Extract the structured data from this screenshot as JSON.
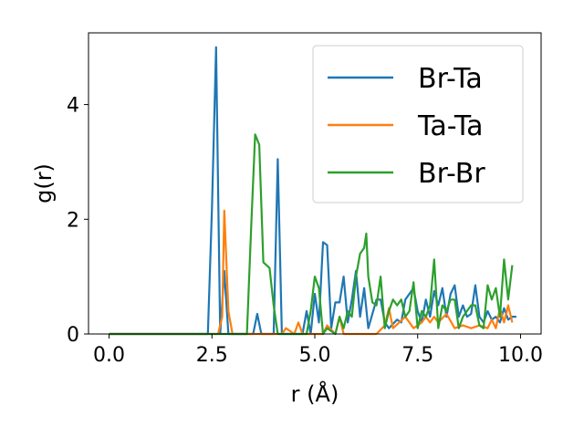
{
  "chart_data": {
    "type": "line",
    "title": "",
    "xlabel": "r (Å)",
    "ylabel": "g(r)",
    "xlim": [
      -0.5,
      10.5
    ],
    "ylim": [
      0,
      5.25
    ],
    "xticks": [
      0.0,
      2.5,
      5.0,
      7.5,
      10.0
    ],
    "xtick_labels": [
      "0.0",
      "2.5",
      "5.0",
      "7.5",
      "10.0"
    ],
    "yticks": [
      0,
      2,
      4
    ],
    "ytick_labels": [
      "0",
      "2",
      "4"
    ],
    "grid": false,
    "legend_position": "top-right",
    "series": [
      {
        "name": "Br-Ta",
        "color": "#1f77b4",
        "points": [
          [
            0.0,
            0
          ],
          [
            2.4,
            0
          ],
          [
            2.5,
            2.2
          ],
          [
            2.6,
            5.0
          ],
          [
            2.7,
            0
          ],
          [
            2.8,
            1.1
          ],
          [
            2.9,
            0
          ],
          [
            3.5,
            0
          ],
          [
            3.6,
            0.35
          ],
          [
            3.7,
            0
          ],
          [
            4.0,
            0
          ],
          [
            4.1,
            3.05
          ],
          [
            4.2,
            0
          ],
          [
            4.7,
            0
          ],
          [
            4.8,
            0.4
          ],
          [
            4.9,
            0
          ],
          [
            5.0,
            0.7
          ],
          [
            5.1,
            0.2
          ],
          [
            5.2,
            1.6
          ],
          [
            5.3,
            1.55
          ],
          [
            5.4,
            0.1
          ],
          [
            5.5,
            0.55
          ],
          [
            5.6,
            0.55
          ],
          [
            5.7,
            1.0
          ],
          [
            5.8,
            0.2
          ],
          [
            5.9,
            0.6
          ],
          [
            6.0,
            1.1
          ],
          [
            6.1,
            0.3
          ],
          [
            6.2,
            0.8
          ],
          [
            6.3,
            0.1
          ],
          [
            6.5,
            0.6
          ],
          [
            6.6,
            0.6
          ],
          [
            6.7,
            0.2
          ],
          [
            6.8,
            0.1
          ],
          [
            7.0,
            0.25
          ],
          [
            7.1,
            0.2
          ],
          [
            7.2,
            0.6
          ],
          [
            7.3,
            0.7
          ],
          [
            7.4,
            0.8
          ],
          [
            7.5,
            0.4
          ],
          [
            7.6,
            0.2
          ],
          [
            7.7,
            0.6
          ],
          [
            7.8,
            0.3
          ],
          [
            7.9,
            0.75
          ],
          [
            8.0,
            0.5
          ],
          [
            8.1,
            0.8
          ],
          [
            8.2,
            0.3
          ],
          [
            8.3,
            0.7
          ],
          [
            8.4,
            0.85
          ],
          [
            8.5,
            0.3
          ],
          [
            8.6,
            0.5
          ],
          [
            8.7,
            0.3
          ],
          [
            8.8,
            0.35
          ],
          [
            8.9,
            0.85
          ],
          [
            9.0,
            0.3
          ],
          [
            9.1,
            0.2
          ],
          [
            9.2,
            0.4
          ],
          [
            9.3,
            0.25
          ],
          [
            9.4,
            0.3
          ],
          [
            9.5,
            0.2
          ],
          [
            9.6,
            0.45
          ],
          [
            9.7,
            0.25
          ],
          [
            9.8,
            0.3
          ],
          [
            9.9,
            0.3
          ]
        ]
      },
      {
        "name": "Ta-Ta",
        "color": "#ff7f0e",
        "points": [
          [
            0.0,
            0
          ],
          [
            2.65,
            0
          ],
          [
            2.75,
            0.3
          ],
          [
            2.8,
            2.15
          ],
          [
            2.9,
            0.4
          ],
          [
            3.0,
            0
          ],
          [
            4.2,
            0
          ],
          [
            4.3,
            0.1
          ],
          [
            4.5,
            0
          ],
          [
            4.6,
            0.2
          ],
          [
            4.7,
            0
          ],
          [
            5.2,
            0
          ],
          [
            5.3,
            0.15
          ],
          [
            5.5,
            0
          ],
          [
            5.6,
            0.3
          ],
          [
            5.7,
            0
          ],
          [
            6.5,
            0
          ],
          [
            6.7,
            0.15
          ],
          [
            6.8,
            0.45
          ],
          [
            6.9,
            0.1
          ],
          [
            7.2,
            0.3
          ],
          [
            7.4,
            0.1
          ],
          [
            7.6,
            0.2
          ],
          [
            7.7,
            0.3
          ],
          [
            7.8,
            0.2
          ],
          [
            7.9,
            0.3
          ],
          [
            8.0,
            0.2
          ],
          [
            8.2,
            0.35
          ],
          [
            8.4,
            0.1
          ],
          [
            8.6,
            0.15
          ],
          [
            8.8,
            0.1
          ],
          [
            9.0,
            0.15
          ],
          [
            9.2,
            0.1
          ],
          [
            9.3,
            0.25
          ],
          [
            9.4,
            0.1
          ],
          [
            9.5,
            0.45
          ],
          [
            9.6,
            0.2
          ],
          [
            9.7,
            0.5
          ],
          [
            9.8,
            0.2
          ]
        ]
      },
      {
        "name": "Br-Br",
        "color": "#2ca02c",
        "points": [
          [
            0.0,
            0
          ],
          [
            3.35,
            0
          ],
          [
            3.45,
            1.8
          ],
          [
            3.55,
            3.48
          ],
          [
            3.65,
            3.3
          ],
          [
            3.75,
            1.25
          ],
          [
            3.9,
            1.15
          ],
          [
            4.0,
            0.5
          ],
          [
            4.1,
            0
          ],
          [
            4.8,
            0
          ],
          [
            4.9,
            0.4
          ],
          [
            5.0,
            1.0
          ],
          [
            5.1,
            0.8
          ],
          [
            5.2,
            0
          ],
          [
            5.3,
            0.1
          ],
          [
            5.5,
            0
          ],
          [
            5.6,
            0.3
          ],
          [
            5.7,
            0.1
          ],
          [
            5.8,
            0.4
          ],
          [
            5.9,
            0.3
          ],
          [
            6.0,
            1.0
          ],
          [
            6.1,
            1.4
          ],
          [
            6.2,
            1.5
          ],
          [
            6.25,
            1.75
          ],
          [
            6.3,
            1.0
          ],
          [
            6.4,
            0.55
          ],
          [
            6.5,
            0.5
          ],
          [
            6.6,
            1.0
          ],
          [
            6.7,
            0.1
          ],
          [
            6.8,
            0.4
          ],
          [
            6.9,
            0.6
          ],
          [
            7.0,
            0.5
          ],
          [
            7.1,
            0.6
          ],
          [
            7.2,
            0.3
          ],
          [
            7.3,
            0.4
          ],
          [
            7.4,
            0.9
          ],
          [
            7.5,
            0.1
          ],
          [
            7.6,
            0.4
          ],
          [
            7.7,
            0.3
          ],
          [
            7.8,
            0.5
          ],
          [
            7.9,
            1.3
          ],
          [
            8.0,
            0.1
          ],
          [
            8.1,
            0.5
          ],
          [
            8.2,
            0.4
          ],
          [
            8.3,
            0.6
          ],
          [
            8.4,
            0.6
          ],
          [
            8.5,
            0.1
          ],
          [
            8.6,
            0.3
          ],
          [
            8.7,
            0.4
          ],
          [
            8.8,
            0.5
          ],
          [
            8.9,
            0.5
          ],
          [
            9.0,
            0.15
          ],
          [
            9.1,
            0.1
          ],
          [
            9.2,
            0.85
          ],
          [
            9.3,
            0.6
          ],
          [
            9.4,
            0.8
          ],
          [
            9.5,
            0.3
          ],
          [
            9.6,
            1.3
          ],
          [
            9.7,
            0.6
          ],
          [
            9.8,
            1.2
          ]
        ]
      }
    ]
  }
}
